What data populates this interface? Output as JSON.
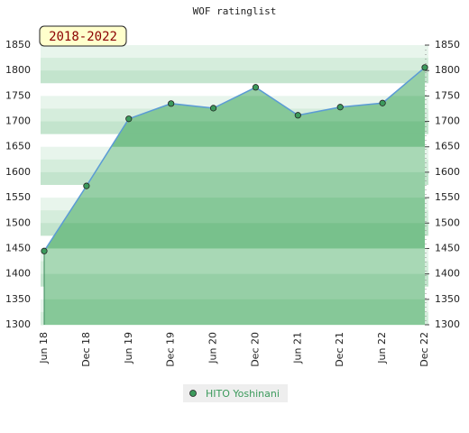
{
  "chart_data": {
    "type": "area",
    "title": "WOF ratinglist",
    "badge": "2018-2022",
    "categories": [
      "Jun 18",
      "Dec 18",
      "Jun 19",
      "Dec 19",
      "Jun 20",
      "Dec 20",
      "Jun 21",
      "Dec 21",
      "Jun 22",
      "Dec 22"
    ],
    "series": [
      {
        "name": "HITO Yoshinani",
        "color": "#5b9bd5",
        "values": [
          1445,
          1573,
          1705,
          1735,
          1726,
          1767,
          1712,
          1728,
          1736,
          1806
        ]
      }
    ],
    "ylim": [
      1300,
      1850
    ],
    "yticks": [
      1300,
      1350,
      1400,
      1450,
      1500,
      1550,
      1600,
      1650,
      1700,
      1750,
      1800,
      1850
    ],
    "grid": true
  }
}
